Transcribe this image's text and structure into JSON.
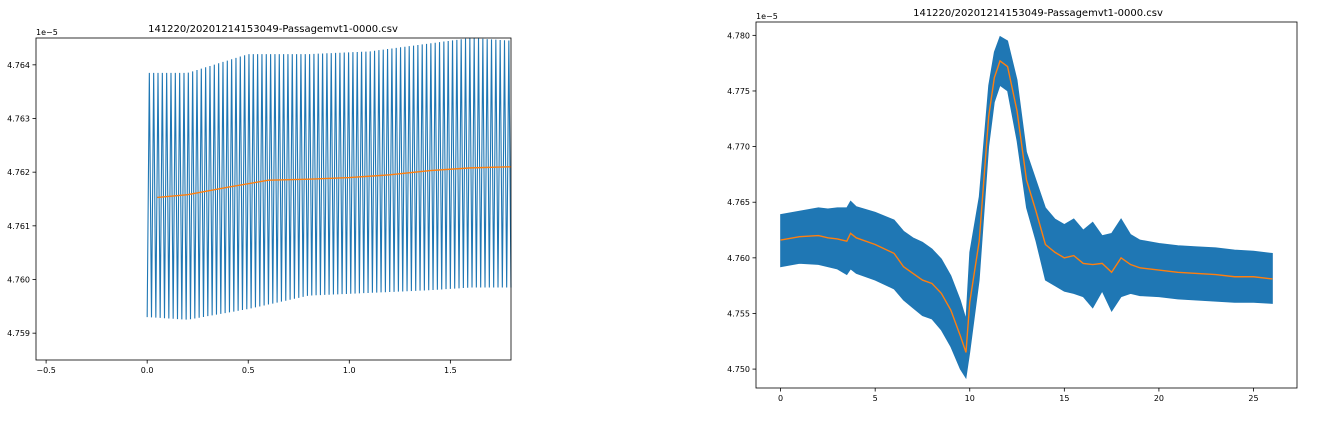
{
  "chart_data": [
    {
      "type": "line",
      "title": "141220/20201214153049-Passagemvt1-0000.csv",
      "xlabel": "",
      "ylabel": "",
      "y_offset_text": "1e−5",
      "xlim": [
        -0.55,
        1.8
      ],
      "ylim": [
        4.7585,
        4.7645
      ],
      "xticks": [
        -0.5,
        0.0,
        0.5,
        1.0,
        1.5
      ],
      "xtick_labels": [
        "−0.5",
        "0.0",
        "0.5",
        "1.0",
        "1.5"
      ],
      "yticks": [
        4.759,
        4.76,
        4.761,
        4.762,
        4.763,
        4.764
      ],
      "ytick_labels": [
        "4.759",
        "4.760",
        "4.761",
        "4.762",
        "4.763",
        "4.764"
      ],
      "grid": false,
      "series": [
        {
          "color": "#1f77b4",
          "kind": "oscillation",
          "x_start": 0.0,
          "x_end": 1.8,
          "cycles": 84,
          "upper_envelope": {
            "x": [
              0.0,
              0.2,
              0.5,
              0.8,
              1.1,
              1.4,
              1.6,
              1.8
            ],
            "y": [
              4.76385,
              4.76385,
              4.7642,
              4.7642,
              4.76425,
              4.7644,
              4.7645,
              4.76445
            ]
          },
          "lower_envelope": {
            "x": [
              0.0,
              0.2,
              0.5,
              0.8,
              1.1,
              1.4,
              1.6,
              1.8
            ],
            "y": [
              4.7593,
              4.75925,
              4.75945,
              4.7597,
              4.75975,
              4.7598,
              4.75985,
              4.75985
            ]
          }
        },
        {
          "color": "#ff7f0e",
          "kind": "line",
          "x": [
            0.05,
            0.2,
            0.4,
            0.6,
            0.8,
            1.0,
            1.2,
            1.4,
            1.6,
            1.8
          ],
          "y": [
            4.76153,
            4.76158,
            4.76172,
            4.76185,
            4.76187,
            4.7619,
            4.76195,
            4.76203,
            4.76208,
            4.7621
          ]
        }
      ]
    },
    {
      "type": "line",
      "title": "141220/20201214153049-Passagemvt1-0000.csv",
      "xlabel": "",
      "ylabel": "",
      "y_offset_text": "1e−5",
      "xlim": [
        -1.3,
        27.3
      ],
      "ylim": [
        4.7483,
        4.7812
      ],
      "xticks": [
        0,
        5,
        10,
        15,
        20,
        25
      ],
      "xtick_labels": [
        "0",
        "5",
        "10",
        "15",
        "20",
        "25"
      ],
      "yticks": [
        4.75,
        4.755,
        4.76,
        4.765,
        4.77,
        4.775,
        4.78
      ],
      "ytick_labels": [
        "4.750",
        "4.755",
        "4.760",
        "4.765",
        "4.770",
        "4.775",
        "4.780"
      ],
      "grid": false,
      "series": [
        {
          "color": "#1f77b4",
          "kind": "band",
          "x": [
            0,
            1,
            2,
            2.5,
            3,
            3.5,
            3.7,
            4,
            5,
            6,
            6.5,
            7,
            7.5,
            8,
            8.5,
            9,
            9.5,
            9.8,
            10,
            10.5,
            11,
            11.3,
            11.6,
            12,
            12.5,
            13,
            13.5,
            14,
            14.5,
            15,
            15.5,
            16,
            16.5,
            17,
            17.5,
            18,
            18.5,
            19,
            20,
            21,
            22,
            23,
            24,
            25,
            26
          ],
          "upper": [
            4.7639,
            4.7642,
            4.7645,
            4.7644,
            4.7645,
            4.7645,
            4.7651,
            4.7646,
            4.7641,
            4.7634,
            4.7624,
            4.7618,
            4.7614,
            4.7608,
            4.7599,
            4.7584,
            4.7562,
            4.7545,
            4.7605,
            4.7655,
            4.7755,
            4.7785,
            4.7799,
            4.7795,
            4.776,
            4.7695,
            4.767,
            4.7645,
            4.7635,
            4.763,
            4.7635,
            4.7625,
            4.7632,
            4.762,
            4.7622,
            4.7635,
            4.7621,
            4.7616,
            4.7613,
            4.7611,
            4.761,
            4.7609,
            4.7607,
            4.7606,
            4.7604
          ],
          "lower": [
            4.7592,
            4.7595,
            4.7594,
            4.7592,
            4.759,
            4.7585,
            4.759,
            4.7586,
            4.758,
            4.7572,
            4.7562,
            4.7555,
            4.7548,
            4.7545,
            4.7535,
            4.752,
            4.75,
            4.7492,
            4.7515,
            4.758,
            4.77,
            4.774,
            4.7755,
            4.775,
            4.7705,
            4.7645,
            4.7615,
            4.758,
            4.7575,
            4.757,
            4.7568,
            4.7565,
            4.7555,
            4.757,
            4.7552,
            4.7565,
            4.7568,
            4.7566,
            4.7565,
            4.7563,
            4.7562,
            4.7561,
            4.756,
            4.756,
            4.7559
          ]
        },
        {
          "color": "#ff7f0e",
          "kind": "line",
          "x": [
            0,
            1,
            2,
            2.5,
            3,
            3.5,
            3.7,
            4,
            5,
            6,
            6.5,
            7,
            7.5,
            8,
            8.5,
            9,
            9.5,
            9.8,
            10,
            10.5,
            11,
            11.3,
            11.6,
            12,
            12.5,
            13,
            13.5,
            14,
            14.5,
            15,
            15.5,
            16,
            16.5,
            17,
            17.5,
            18,
            18.5,
            19,
            20,
            21,
            22,
            23,
            24,
            25,
            26
          ],
          "y": [
            4.7616,
            4.7619,
            4.762,
            4.7618,
            4.7617,
            4.7615,
            4.7622,
            4.7618,
            4.7612,
            4.7604,
            4.7592,
            4.7586,
            4.758,
            4.7577,
            4.7568,
            4.7553,
            4.753,
            4.7515,
            4.756,
            4.7615,
            4.7727,
            4.7762,
            4.7777,
            4.7772,
            4.7732,
            4.767,
            4.7642,
            4.7612,
            4.7605,
            4.76,
            4.7602,
            4.7595,
            4.7594,
            4.7595,
            4.7587,
            4.76,
            4.7594,
            4.7591,
            4.7589,
            4.7587,
            4.7586,
            4.7585,
            4.7583,
            4.7583,
            4.7581
          ]
        }
      ]
    }
  ]
}
